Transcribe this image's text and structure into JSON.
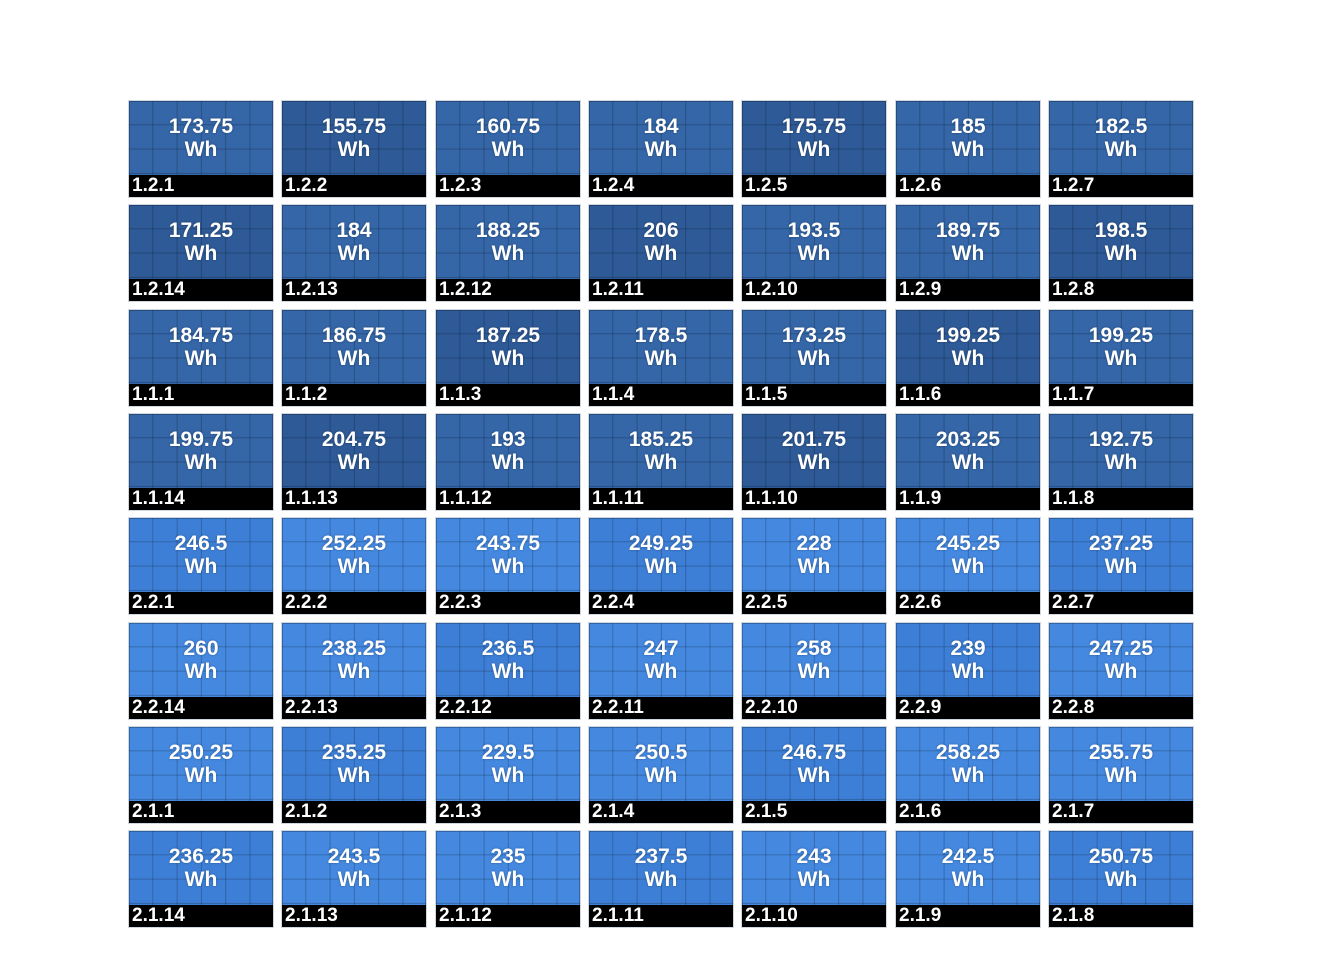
{
  "unit": "Wh",
  "colors": {
    "dark_panel": "#3466a8",
    "dark_panel_alt": "#2e5a97",
    "light_panel": "#4488e0",
    "light_panel_alt": "#3d7fd6",
    "label_bg": "#000000",
    "text": "#ffffff"
  },
  "rows": [
    {
      "style": "dark",
      "panels": [
        {
          "value": "173.75",
          "id": "1.2.1"
        },
        {
          "value": "155.75",
          "id": "1.2.2"
        },
        {
          "value": "160.75",
          "id": "1.2.3"
        },
        {
          "value": "184",
          "id": "1.2.4"
        },
        {
          "value": "175.75",
          "id": "1.2.5"
        },
        {
          "value": "185",
          "id": "1.2.6"
        },
        {
          "value": "182.5",
          "id": "1.2.7"
        }
      ]
    },
    {
      "style": "dark",
      "panels": [
        {
          "value": "171.25",
          "id": "1.2.14"
        },
        {
          "value": "184",
          "id": "1.2.13"
        },
        {
          "value": "188.25",
          "id": "1.2.12"
        },
        {
          "value": "206",
          "id": "1.2.11"
        },
        {
          "value": "193.5",
          "id": "1.2.10"
        },
        {
          "value": "189.75",
          "id": "1.2.9"
        },
        {
          "value": "198.5",
          "id": "1.2.8"
        }
      ]
    },
    {
      "style": "dark",
      "panels": [
        {
          "value": "184.75",
          "id": "1.1.1"
        },
        {
          "value": "186.75",
          "id": "1.1.2"
        },
        {
          "value": "187.25",
          "id": "1.1.3"
        },
        {
          "value": "178.5",
          "id": "1.1.4"
        },
        {
          "value": "173.25",
          "id": "1.1.5"
        },
        {
          "value": "199.25",
          "id": "1.1.6"
        },
        {
          "value": "199.25",
          "id": "1.1.7"
        }
      ]
    },
    {
      "style": "dark",
      "panels": [
        {
          "value": "199.75",
          "id": "1.1.14"
        },
        {
          "value": "204.75",
          "id": "1.1.13"
        },
        {
          "value": "193",
          "id": "1.1.12"
        },
        {
          "value": "185.25",
          "id": "1.1.11"
        },
        {
          "value": "201.75",
          "id": "1.1.10"
        },
        {
          "value": "203.25",
          "id": "1.1.9"
        },
        {
          "value": "192.75",
          "id": "1.1.8"
        }
      ]
    },
    {
      "style": "light",
      "panels": [
        {
          "value": "246.5",
          "id": "2.2.1"
        },
        {
          "value": "252.25",
          "id": "2.2.2"
        },
        {
          "value": "243.75",
          "id": "2.2.3"
        },
        {
          "value": "249.25",
          "id": "2.2.4"
        },
        {
          "value": "228",
          "id": "2.2.5"
        },
        {
          "value": "245.25",
          "id": "2.2.6"
        },
        {
          "value": "237.25",
          "id": "2.2.7"
        }
      ]
    },
    {
      "style": "light",
      "panels": [
        {
          "value": "260",
          "id": "2.2.14"
        },
        {
          "value": "238.25",
          "id": "2.2.13"
        },
        {
          "value": "236.5",
          "id": "2.2.12"
        },
        {
          "value": "247",
          "id": "2.2.11"
        },
        {
          "value": "258",
          "id": "2.2.10"
        },
        {
          "value": "239",
          "id": "2.2.9"
        },
        {
          "value": "247.25",
          "id": "2.2.8"
        }
      ]
    },
    {
      "style": "light",
      "panels": [
        {
          "value": "250.25",
          "id": "2.1.1"
        },
        {
          "value": "235.25",
          "id": "2.1.2"
        },
        {
          "value": "229.5",
          "id": "2.1.3"
        },
        {
          "value": "250.5",
          "id": "2.1.4"
        },
        {
          "value": "246.75",
          "id": "2.1.5"
        },
        {
          "value": "258.25",
          "id": "2.1.6"
        },
        {
          "value": "255.75",
          "id": "2.1.7"
        }
      ]
    },
    {
      "style": "light",
      "panels": [
        {
          "value": "236.25",
          "id": "2.1.14"
        },
        {
          "value": "243.5",
          "id": "2.1.13"
        },
        {
          "value": "235",
          "id": "2.1.12"
        },
        {
          "value": "237.5",
          "id": "2.1.11"
        },
        {
          "value": "243",
          "id": "2.1.10"
        },
        {
          "value": "242.5",
          "id": "2.1.9"
        },
        {
          "value": "250.75",
          "id": "2.1.8"
        }
      ]
    }
  ]
}
